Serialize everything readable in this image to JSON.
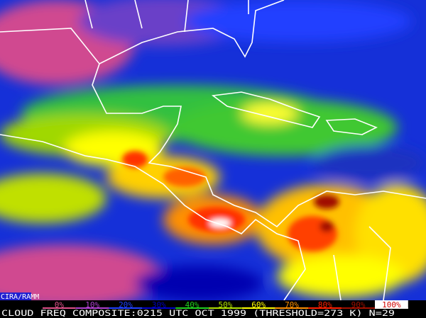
{
  "map": {
    "source_label": "CIRA/RAMM",
    "legend": [
      {
        "label": "0%",
        "color": "#e0508a"
      },
      {
        "label": "10%",
        "color": "#b040d0"
      },
      {
        "label": "20%",
        "color": "#2040ff"
      },
      {
        "label": "30%",
        "color": "#0000c8"
      },
      {
        "label": "40%",
        "color": "#20d020"
      },
      {
        "label": "50%",
        "color": "#b0e000"
      },
      {
        "label": "60%",
        "color": "#ffff00"
      },
      {
        "label": "70%",
        "color": "#ff9000"
      },
      {
        "label": "80%",
        "color": "#ff2000"
      },
      {
        "label": "90%",
        "color": "#a01000"
      },
      {
        "label": "100%",
        "color": "#ffffff"
      }
    ],
    "caption": "CLOUD FREQ COMPOSITE:0215 UTC OCT 1999 (THRESHOLD=273 K) N=29"
  }
}
